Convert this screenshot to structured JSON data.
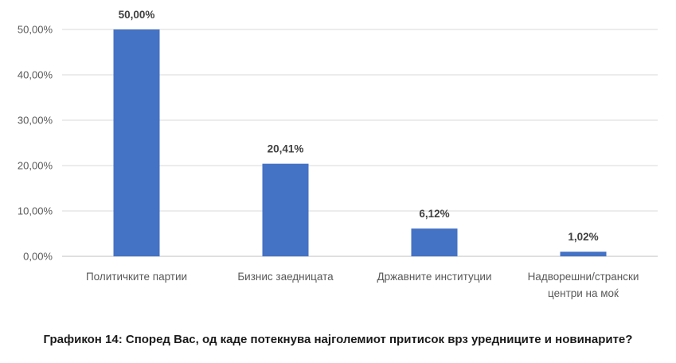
{
  "chart_data": {
    "type": "bar",
    "categories": [
      [
        "Политичките партии"
      ],
      [
        "Бизнис заедницата"
      ],
      [
        "Државните институции"
      ],
      [
        "Надворешни/странски",
        "центри на моќ"
      ]
    ],
    "values": [
      50.0,
      20.41,
      6.12,
      1.02
    ],
    "value_labels": [
      "50,00%",
      "20,41%",
      "6,12%",
      "1,02%"
    ],
    "yticks": [
      0,
      10,
      20,
      30,
      40,
      50
    ],
    "ytick_labels": [
      "0,00%",
      "10,00%",
      "20,00%",
      "30,00%",
      "40,00%",
      "50,00%"
    ],
    "ylim": [
      0,
      50
    ],
    "grid": true,
    "bar_color": "#4472C4"
  },
  "caption": "Графикон 14: Според Вас, од каде потекнува најголемиот притисок врз уредниците и новинарите?"
}
